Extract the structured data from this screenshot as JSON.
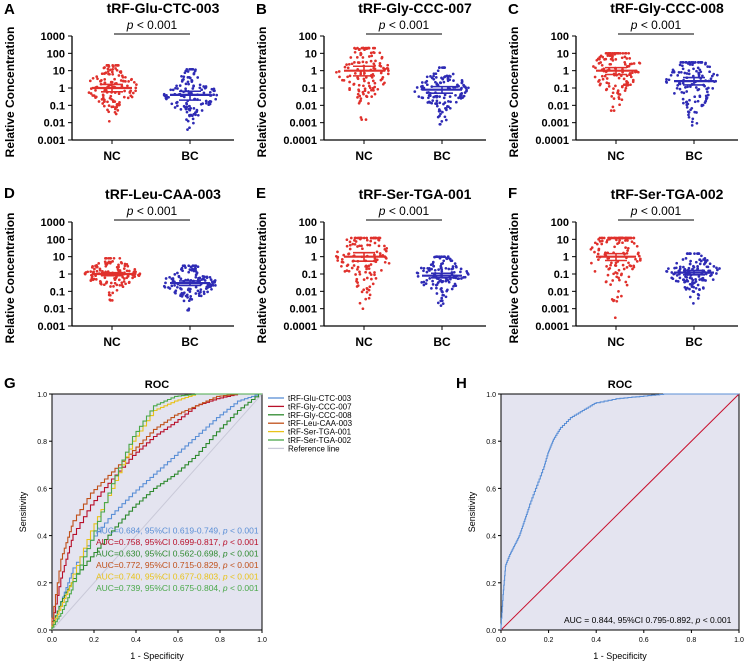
{
  "chart_data": [
    {
      "panel": "A",
      "type": "scatter",
      "title": "tRF-Glu-CTC-003",
      "ylabel": "Relative Concentration",
      "categories": [
        "NC",
        "BC"
      ],
      "yticks": [
        "1000",
        "100",
        "10",
        "1",
        "0.1",
        "0.01",
        "0.001"
      ],
      "ylog_range": [
        -3,
        3
      ],
      "annotation": {
        "prefix": "p",
        "text": " < 0.001"
      },
      "groups": [
        {
          "name": "NC",
          "color": "#e0312c",
          "center": 1.0,
          "ci": [
            0.6,
            1.6
          ],
          "min": 0.012,
          "max": 20
        },
        {
          "name": "BC",
          "color": "#2e2bb5",
          "center": 0.4,
          "ci": [
            0.2,
            0.65
          ],
          "min": 0.004,
          "max": 12
        }
      ]
    },
    {
      "panel": "B",
      "type": "scatter",
      "title": "tRF-Gly-CCC-007",
      "ylabel": "Relative Concentration",
      "categories": [
        "NC",
        "BC"
      ],
      "yticks": [
        "100",
        "10",
        "1",
        "0.1",
        "0.01",
        "0.001",
        "0.0001"
      ],
      "ylog_range": [
        -4,
        2
      ],
      "annotation": {
        "prefix": "p",
        "text": " < 0.001"
      },
      "groups": [
        {
          "name": "NC",
          "color": "#e0312c",
          "center": 1.0,
          "ci": [
            0.5,
            1.8
          ],
          "min": 0.0015,
          "max": 20
        },
        {
          "name": "BC",
          "color": "#2e2bb5",
          "center": 0.08,
          "ci": [
            0.05,
            0.12
          ],
          "min": 0.0008,
          "max": 1.5
        }
      ]
    },
    {
      "panel": "C",
      "type": "scatter",
      "title": "tRF-Gly-CCC-008",
      "ylabel": "Relative Concentration",
      "categories": [
        "NC",
        "BC"
      ],
      "yticks": [
        "100",
        "10",
        "1",
        "0.1",
        "0.01",
        "0.001",
        "0.0001"
      ],
      "ylog_range": [
        -4,
        2
      ],
      "annotation": {
        "prefix": "p",
        "text": " < 0.001"
      },
      "groups": [
        {
          "name": "NC",
          "color": "#e0312c",
          "center": 1.0,
          "ci": [
            0.6,
            1.5
          ],
          "min": 0.005,
          "max": 10
        },
        {
          "name": "BC",
          "color": "#2e2bb5",
          "center": 0.25,
          "ci": [
            0.15,
            0.4
          ],
          "min": 0.0007,
          "max": 3
        }
      ]
    },
    {
      "panel": "D",
      "type": "scatter",
      "title": "tRF-Leu-CAA-003",
      "ylabel": "Relative Concentration",
      "categories": [
        "NC",
        "BC"
      ],
      "yticks": [
        "1000",
        "100",
        "10",
        "1",
        "0.1",
        "0.01",
        "0.001"
      ],
      "ylog_range": [
        -3,
        3
      ],
      "annotation": {
        "prefix": "p",
        "text": " < 0.001"
      },
      "groups": [
        {
          "name": "NC",
          "color": "#e0312c",
          "center": 1.0,
          "ci": [
            0.8,
            1.2
          ],
          "min": 0.03,
          "max": 8
        },
        {
          "name": "BC",
          "color": "#2e2bb5",
          "center": 0.3,
          "ci": [
            0.22,
            0.4
          ],
          "min": 0.008,
          "max": 3
        }
      ]
    },
    {
      "panel": "E",
      "type": "scatter",
      "title": "tRF-Ser-TGA-001",
      "ylabel": "Relative Concentration",
      "categories": [
        "NC",
        "BC"
      ],
      "yticks": [
        "100",
        "10",
        "1",
        "0.1",
        "0.01",
        "0.001",
        "0.0001"
      ],
      "ylog_range": [
        -4,
        2
      ],
      "annotation": {
        "prefix": "p",
        "text": " < 0.001"
      },
      "groups": [
        {
          "name": "NC",
          "color": "#e0312c",
          "center": 1.0,
          "ci": [
            0.55,
            1.7
          ],
          "min": 0.001,
          "max": 12
        },
        {
          "name": "BC",
          "color": "#2e2bb5",
          "center": 0.08,
          "ci": [
            0.06,
            0.11
          ],
          "min": 0.0015,
          "max": 1
        }
      ]
    },
    {
      "panel": "F",
      "type": "scatter",
      "title": "tRF-Ser-TGA-002",
      "ylabel": "Relative Concentration",
      "categories": [
        "NC",
        "BC"
      ],
      "yticks": [
        "100",
        "10",
        "1",
        "0.1",
        "0.01",
        "0.001",
        "0.0001"
      ],
      "ylog_range": [
        -4,
        2
      ],
      "annotation": {
        "prefix": "p",
        "text": " < 0.001"
      },
      "groups": [
        {
          "name": "NC",
          "color": "#e0312c",
          "center": 1.0,
          "ci": [
            0.6,
            1.5
          ],
          "min": 0.0003,
          "max": 12
        },
        {
          "name": "BC",
          "color": "#2e2bb5",
          "center": 0.12,
          "ci": [
            0.09,
            0.16
          ],
          "min": 0.002,
          "max": 1.5
        }
      ]
    },
    {
      "panel": "G",
      "type": "line",
      "title": "ROC",
      "xlabel": "1 - Specificity",
      "ylabel": "Sensitivity",
      "xlim": [
        0,
        1
      ],
      "ylim": [
        0,
        1
      ],
      "ticks": [
        "0.0",
        "0.2",
        "0.4",
        "0.6",
        "0.8",
        "1.0"
      ],
      "legend_position": "right",
      "reference_line": {
        "name": "Reference line",
        "color": "#c9c9d8"
      },
      "series": [
        {
          "name": "tRF-Glu-CTC-003",
          "color": "#5b8fd6",
          "auc": "0.684",
          "ci_text": "95%CI  0.619-0.749,",
          "p_text": " < 0.001",
          "x": [
            0,
            0.05,
            0.1,
            0.2,
            0.3,
            0.4,
            0.5,
            0.6,
            0.7,
            0.8,
            0.9,
            1
          ],
          "y": [
            0,
            0.12,
            0.24,
            0.38,
            0.49,
            0.58,
            0.66,
            0.74,
            0.82,
            0.9,
            0.97,
            1
          ]
        },
        {
          "name": "tRF-Gly-CCC-007",
          "color": "#b8102a",
          "auc": "0.758",
          "ci_text": "95%CI  0.699-0.817,",
          "p_text": " < 0.001",
          "x": [
            0,
            0.05,
            0.1,
            0.2,
            0.3,
            0.4,
            0.5,
            0.6,
            0.7,
            0.8,
            0.9,
            1
          ],
          "y": [
            0,
            0.22,
            0.38,
            0.53,
            0.64,
            0.74,
            0.82,
            0.88,
            0.95,
            0.98,
            1,
            1
          ]
        },
        {
          "name": "tRF-Gly-CCC-008",
          "color": "#2f8a2f",
          "auc": "0.630",
          "ci_text": "95%CI  0.562-0.698,",
          "p_text": " < 0.001",
          "x": [
            0,
            0.05,
            0.1,
            0.2,
            0.3,
            0.4,
            0.5,
            0.6,
            0.7,
            0.8,
            0.9,
            1
          ],
          "y": [
            0,
            0.12,
            0.2,
            0.31,
            0.42,
            0.52,
            0.6,
            0.66,
            0.74,
            0.84,
            0.93,
            1
          ]
        },
        {
          "name": "tRF-Leu-CAA-003",
          "color": "#c0501a",
          "auc": "0.772",
          "ci_text": "95%CI  0.715-0.829,",
          "p_text": " < 0.001",
          "x": [
            0,
            0.05,
            0.1,
            0.2,
            0.3,
            0.4,
            0.5,
            0.6,
            0.7,
            0.8,
            0.9,
            1
          ],
          "y": [
            0,
            0.3,
            0.44,
            0.58,
            0.67,
            0.76,
            0.85,
            0.91,
            0.95,
            0.99,
            1,
            1
          ]
        },
        {
          "name": "tRF-Ser-TGA-001",
          "color": "#e8c21a",
          "auc": "0.740",
          "ci_text": "95%CI  0.677-0.803,",
          "p_text": " < 0.001",
          "x": [
            0,
            0.05,
            0.1,
            0.2,
            0.3,
            0.4,
            0.5,
            0.6,
            0.7,
            0.8,
            0.9,
            1
          ],
          "y": [
            0,
            0.1,
            0.2,
            0.42,
            0.6,
            0.8,
            0.93,
            0.97,
            1,
            1,
            1,
            1
          ]
        },
        {
          "name": "tRF-Ser-TGA-002",
          "color": "#4aa84a",
          "auc": "0.739",
          "ci_text": "95%CI  0.675-0.804,",
          "p_text": " < 0.001",
          "x": [
            0,
            0.05,
            0.1,
            0.2,
            0.3,
            0.4,
            0.5,
            0.6,
            0.7,
            0.8,
            0.9,
            1
          ],
          "y": [
            0,
            0.07,
            0.17,
            0.38,
            0.62,
            0.82,
            0.95,
            0.99,
            1,
            1,
            1,
            1
          ]
        }
      ]
    },
    {
      "panel": "H",
      "type": "line",
      "title": "ROC",
      "xlabel": "1 - Specificity",
      "ylabel": "Sensitivity",
      "xlim": [
        0,
        1
      ],
      "ylim": [
        0,
        1
      ],
      "ticks": [
        "0.0",
        "0.2",
        "0.4",
        "0.6",
        "0.8",
        "1.0"
      ],
      "reference_line": {
        "color": "#c8102e"
      },
      "annotation": {
        "prefix": "AUC = 0.844, 95%CI 0.795-0.892, ",
        "p": "p",
        "suffix": " < 0.001"
      },
      "series": [
        {
          "name": "ROC",
          "color": "#5b8fd6",
          "x": [
            0,
            0.01,
            0.02,
            0.04,
            0.06,
            0.08,
            0.1,
            0.12,
            0.15,
            0.18,
            0.2,
            0.22,
            0.25,
            0.3,
            0.35,
            0.4,
            0.5,
            0.6,
            0.7,
            0.8,
            0.9,
            1
          ],
          "y": [
            0,
            0.15,
            0.27,
            0.32,
            0.36,
            0.4,
            0.46,
            0.52,
            0.6,
            0.68,
            0.75,
            0.8,
            0.85,
            0.9,
            0.93,
            0.96,
            0.98,
            0.99,
            1,
            1,
            1,
            1
          ]
        }
      ]
    }
  ]
}
